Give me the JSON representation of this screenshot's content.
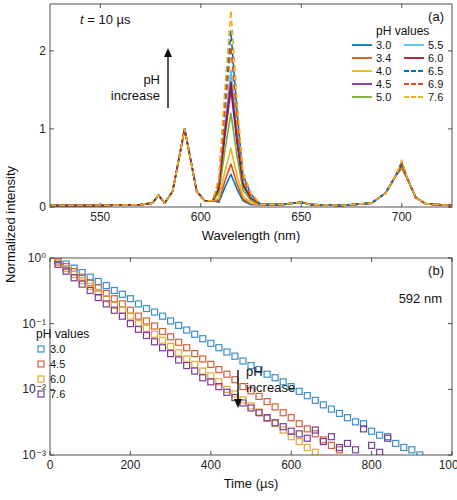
{
  "chart_data": [
    {
      "type": "line",
      "title": "(a)",
      "subtitle": "t = 10 µs",
      "xlabel": "Wavelength (nm)",
      "annotation": [
        "pH",
        "increase"
      ],
      "legend_title": "pH values",
      "legend": "upper right",
      "xlim": [
        525,
        725
      ],
      "xticks": [
        550,
        600,
        650,
        700
      ],
      "ylim": [
        0,
        2.6
      ],
      "yticks": [
        0,
        1,
        2
      ],
      "x": [
        525,
        550,
        570,
        576,
        579,
        582,
        586,
        589,
        592,
        595,
        598,
        602,
        606,
        609,
        612,
        615,
        618,
        621,
        625,
        630,
        640,
        650,
        655,
        670,
        685,
        692,
        697,
        700,
        703,
        707,
        712,
        725
      ],
      "series": [
        {
          "name": "3.0",
          "color": "#0072bd",
          "line_style": "solid",
          "values": [
            0.02,
            0.02,
            0.03,
            0.05,
            0.15,
            0.05,
            0.2,
            0.6,
            1.0,
            0.6,
            0.2,
            0.08,
            0.08,
            0.06,
            0.25,
            0.42,
            0.23,
            0.08,
            0.03,
            0.03,
            0.03,
            0.06,
            0.03,
            0.02,
            0.05,
            0.18,
            0.4,
            0.5,
            0.35,
            0.12,
            0.04,
            0.02
          ]
        },
        {
          "name": "3.4",
          "color": "#d95319",
          "line_style": "solid",
          "values": [
            0.02,
            0.02,
            0.03,
            0.05,
            0.15,
            0.05,
            0.2,
            0.6,
            1.0,
            0.6,
            0.2,
            0.08,
            0.08,
            0.08,
            0.33,
            0.55,
            0.3,
            0.1,
            0.04,
            0.03,
            0.03,
            0.06,
            0.03,
            0.02,
            0.05,
            0.18,
            0.4,
            0.5,
            0.35,
            0.12,
            0.04,
            0.02
          ]
        },
        {
          "name": "4.0",
          "color": "#edb120",
          "line_style": "solid",
          "values": [
            0.02,
            0.02,
            0.03,
            0.05,
            0.15,
            0.05,
            0.2,
            0.6,
            1.0,
            0.6,
            0.2,
            0.08,
            0.08,
            0.11,
            0.45,
            0.75,
            0.41,
            0.14,
            0.05,
            0.03,
            0.03,
            0.06,
            0.03,
            0.02,
            0.05,
            0.18,
            0.4,
            0.52,
            0.35,
            0.12,
            0.04,
            0.02
          ]
        },
        {
          "name": "4.5",
          "color": "#7e2f8e",
          "line_style": "solid",
          "values": [
            0.02,
            0.02,
            0.03,
            0.05,
            0.15,
            0.05,
            0.2,
            0.6,
            1.0,
            0.6,
            0.2,
            0.08,
            0.08,
            0.23,
            0.9,
            1.5,
            0.83,
            0.27,
            0.11,
            0.03,
            0.03,
            0.06,
            0.03,
            0.02,
            0.05,
            0.18,
            0.4,
            0.55,
            0.35,
            0.12,
            0.04,
            0.02
          ]
        },
        {
          "name": "5.0",
          "color": "#77ac30",
          "line_style": "solid",
          "values": [
            0.02,
            0.02,
            0.03,
            0.05,
            0.15,
            0.05,
            0.2,
            0.6,
            1.0,
            0.6,
            0.2,
            0.08,
            0.08,
            0.18,
            0.72,
            1.2,
            0.66,
            0.22,
            0.08,
            0.03,
            0.03,
            0.06,
            0.03,
            0.02,
            0.05,
            0.18,
            0.4,
            0.53,
            0.35,
            0.12,
            0.04,
            0.02
          ]
        },
        {
          "name": "5.5",
          "color": "#4dbeee",
          "line_style": "solid",
          "values": [
            0.02,
            0.02,
            0.03,
            0.05,
            0.15,
            0.05,
            0.2,
            0.6,
            1.0,
            0.6,
            0.2,
            0.08,
            0.08,
            0.26,
            1.05,
            1.75,
            0.96,
            0.32,
            0.12,
            0.03,
            0.03,
            0.06,
            0.03,
            0.02,
            0.05,
            0.18,
            0.4,
            0.56,
            0.35,
            0.12,
            0.04,
            0.02
          ]
        },
        {
          "name": "6.0",
          "color": "#a2142f",
          "line_style": "solid",
          "values": [
            0.02,
            0.02,
            0.03,
            0.05,
            0.15,
            0.05,
            0.2,
            0.6,
            1.0,
            0.6,
            0.2,
            0.08,
            0.08,
            0.24,
            0.96,
            1.6,
            0.88,
            0.29,
            0.11,
            0.03,
            0.03,
            0.06,
            0.03,
            0.02,
            0.05,
            0.18,
            0.4,
            0.55,
            0.35,
            0.12,
            0.04,
            0.02
          ]
        },
        {
          "name": "6.5",
          "color": "#0072bd",
          "line_style": "dashed",
          "values": [
            0.02,
            0.02,
            0.03,
            0.05,
            0.15,
            0.05,
            0.2,
            0.6,
            1.0,
            0.6,
            0.2,
            0.08,
            0.08,
            0.34,
            1.35,
            2.25,
            1.24,
            0.41,
            0.16,
            0.03,
            0.03,
            0.06,
            0.03,
            0.02,
            0.05,
            0.18,
            0.4,
            0.58,
            0.35,
            0.12,
            0.04,
            0.02
          ]
        },
        {
          "name": "6.9",
          "color": "#d95319",
          "line_style": "dashed",
          "values": [
            0.02,
            0.02,
            0.03,
            0.05,
            0.15,
            0.05,
            0.2,
            0.6,
            1.0,
            0.6,
            0.2,
            0.08,
            0.08,
            0.31,
            1.23,
            2.05,
            1.13,
            0.37,
            0.14,
            0.03,
            0.03,
            0.06,
            0.03,
            0.02,
            0.05,
            0.18,
            0.4,
            0.57,
            0.35,
            0.12,
            0.04,
            0.02
          ]
        },
        {
          "name": "7.6",
          "color": "#edb120",
          "line_style": "dashed",
          "values": [
            0.02,
            0.02,
            0.03,
            0.05,
            0.15,
            0.05,
            0.2,
            0.6,
            1.0,
            0.6,
            0.2,
            0.08,
            0.08,
            0.38,
            1.51,
            2.52,
            1.39,
            0.45,
            0.18,
            0.03,
            0.03,
            0.06,
            0.03,
            0.02,
            0.05,
            0.18,
            0.4,
            0.6,
            0.35,
            0.12,
            0.04,
            0.02
          ]
        }
      ]
    },
    {
      "type": "scatter",
      "title": "(b)",
      "subtitle": "592 nm",
      "xlabel": "Time (µs)",
      "ylabel": "Normalized intensity",
      "annotation": [
        "pH",
        "increase"
      ],
      "legend_title": "pH values",
      "legend": "lower left",
      "log": "y",
      "marker": "square",
      "xlim": [
        0,
        1000
      ],
      "xticks": [
        0,
        200,
        400,
        600,
        800,
        1000
      ],
      "ylim": [
        0.001,
        1
      ],
      "yticks": [
        {
          "value": 0.001,
          "label": "10⁻³"
        },
        {
          "value": 0.01,
          "label": "10⁻²"
        },
        {
          "value": 0.1,
          "label": "10⁻¹"
        },
        {
          "value": 1,
          "label": "10⁰"
        }
      ],
      "series": [
        {
          "name": "3.0",
          "color": "#3a8fc6",
          "x": [
            20,
            40,
            60,
            80,
            100,
            120,
            140,
            160,
            180,
            200,
            220,
            240,
            260,
            280,
            300,
            320,
            340,
            360,
            380,
            400,
            420,
            440,
            460,
            480,
            500,
            520,
            540,
            560,
            580,
            600,
            620,
            640,
            660,
            680,
            700,
            720,
            740,
            760,
            780,
            800,
            820,
            840,
            860,
            880,
            900,
            920
          ],
          "values": [
            0.95,
            0.81,
            0.7,
            0.6,
            0.51,
            0.44,
            0.38,
            0.32,
            0.28,
            0.24,
            0.2,
            0.17,
            0.15,
            0.13,
            0.11,
            0.094,
            0.08,
            0.069,
            0.059,
            0.05,
            0.043,
            0.037,
            0.032,
            0.027,
            0.023,
            0.02,
            0.017,
            0.015,
            0.013,
            0.011,
            0.0093,
            0.008,
            0.0068,
            0.0058,
            0.005,
            0.0043,
            0.0037,
            0.0032,
            0.003,
            0.0023,
            0.002,
            0.0019,
            0.0015,
            0.0013,
            0.0012,
            0.001
          ]
        },
        {
          "name": "4.5",
          "color": "#d0603a",
          "x": [
            20,
            40,
            60,
            80,
            100,
            120,
            140,
            160,
            180,
            200,
            220,
            240,
            260,
            280,
            300,
            320,
            340,
            360,
            380,
            400,
            420,
            440,
            460,
            480,
            500,
            520,
            540,
            560,
            580,
            600,
            620,
            640,
            660,
            680,
            700,
            720
          ],
          "values": [
            0.9,
            0.74,
            0.62,
            0.51,
            0.42,
            0.35,
            0.29,
            0.24,
            0.2,
            0.16,
            0.13,
            0.11,
            0.092,
            0.076,
            0.063,
            0.052,
            0.043,
            0.035,
            0.029,
            0.024,
            0.02,
            0.017,
            0.014,
            0.011,
            0.0095,
            0.0078,
            0.0065,
            0.0054,
            0.0044,
            0.0037,
            0.003,
            0.0025,
            0.0021,
            0.0017,
            0.0014,
            0.0012
          ]
        },
        {
          "name": "6.0",
          "color": "#e8a830",
          "x": [
            20,
            40,
            60,
            80,
            100,
            120,
            140,
            160,
            180,
            200,
            220,
            240,
            260,
            280,
            300,
            320,
            340,
            360,
            380,
            400,
            420,
            440,
            460,
            480,
            500,
            520,
            540,
            560,
            580,
            600,
            620,
            640,
            660
          ],
          "values": [
            0.85,
            0.69,
            0.56,
            0.45,
            0.37,
            0.3,
            0.24,
            0.19,
            0.16,
            0.13,
            0.1,
            0.085,
            0.069,
            0.056,
            0.045,
            0.036,
            0.029,
            0.024,
            0.019,
            0.016,
            0.013,
            0.01,
            0.0085,
            0.0069,
            0.0056,
            0.0045,
            0.0036,
            0.003,
            0.0024,
            0.0019,
            0.0016,
            0.0013,
            0.0011
          ]
        },
        {
          "name": "7.6",
          "color": "#7d3c98",
          "x": [
            20,
            40,
            60,
            80,
            100,
            120,
            140,
            160,
            180,
            200,
            220,
            240,
            260,
            280,
            300,
            320,
            340,
            360,
            380,
            400,
            420,
            440,
            460,
            480,
            500,
            520,
            540,
            560,
            580,
            600,
            620,
            640,
            660,
            680,
            700,
            720,
            740,
            760,
            780,
            800,
            820,
            840
          ],
          "values": [
            0.8,
            0.63,
            0.5,
            0.4,
            0.32,
            0.25,
            0.2,
            0.16,
            0.13,
            0.1,
            0.082,
            0.066,
            0.053,
            0.043,
            0.035,
            0.028,
            0.023,
            0.019,
            0.015,
            0.013,
            0.011,
            0.009,
            0.0075,
            0.0062,
            0.0052,
            0.0044,
            0.0037,
            0.0031,
            0.0027,
            0.0023,
            0.0021,
            0.0018,
            0.0024,
            0.0016,
            0.0019,
            0.0013,
            0.0015,
            0.0012,
            0.0025,
            0.0014,
            0.0011,
            0.0018
          ]
        }
      ]
    }
  ]
}
